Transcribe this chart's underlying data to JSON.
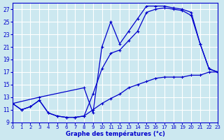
{
  "xlabel": "Graphe des températures (°c)",
  "bg_color": "#cce8f0",
  "grid_color": "#ffffff",
  "line_color": "#0000cc",
  "xlim": [
    0,
    23
  ],
  "ylim": [
    9,
    28
  ],
  "yticks": [
    9,
    11,
    13,
    15,
    17,
    19,
    21,
    23,
    25,
    27
  ],
  "xticks": [
    0,
    1,
    2,
    3,
    4,
    5,
    6,
    7,
    8,
    9,
    10,
    11,
    12,
    13,
    14,
    15,
    16,
    17,
    18,
    19,
    20,
    21,
    22,
    23
  ],
  "line_bottom_x": [
    0,
    1,
    2,
    3,
    4,
    5,
    6,
    7,
    8,
    9,
    10,
    11,
    12,
    13,
    14,
    15,
    16,
    17,
    18,
    19,
    20,
    21,
    22,
    23
  ],
  "line_bottom_y": [
    12.0,
    11.0,
    11.5,
    12.5,
    10.5,
    10.0,
    9.8,
    9.8,
    10.0,
    11.0,
    12.0,
    12.8,
    13.5,
    14.5,
    15.0,
    15.5,
    16.0,
    16.2,
    16.2,
    16.2,
    16.5,
    16.5,
    17.0,
    17.0
  ],
  "line_mid_x": [
    0,
    1,
    2,
    3,
    4,
    5,
    6,
    7,
    8,
    9,
    10,
    11,
    12,
    13,
    14,
    15,
    16,
    17,
    18,
    19,
    20,
    21,
    22,
    23
  ],
  "line_mid_y": [
    12.0,
    11.0,
    11.5,
    12.5,
    10.5,
    10.0,
    9.8,
    9.8,
    10.0,
    13.5,
    17.5,
    20.0,
    20.5,
    22.0,
    23.5,
    26.5,
    27.0,
    27.2,
    27.0,
    26.8,
    26.0,
    21.5,
    17.5,
    17.0
  ],
  "line_top_x": [
    0,
    3,
    8,
    9,
    10,
    11,
    12,
    13,
    14,
    15,
    16,
    17,
    18,
    19,
    20,
    21,
    22,
    23
  ],
  "line_top_y": [
    12.0,
    13.0,
    14.5,
    10.5,
    21.0,
    25.0,
    21.5,
    23.5,
    25.5,
    27.5,
    27.5,
    27.5,
    27.2,
    27.0,
    26.5,
    21.5,
    17.5,
    17.0
  ]
}
